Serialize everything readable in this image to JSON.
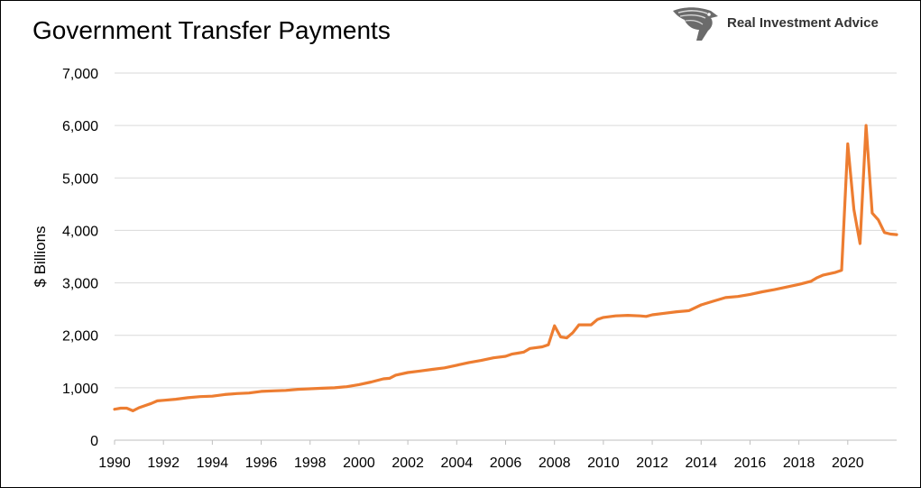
{
  "header": {
    "title": "Government Transfer Payments",
    "brand": "Real Investment Advice",
    "logo_icon": "eagle-head-icon"
  },
  "chart_data": {
    "type": "line",
    "title": "Government Transfer Payments",
    "xlabel": "",
    "ylabel": "$ Billions",
    "xlim": [
      1990,
      2022
    ],
    "ylim": [
      0,
      7000
    ],
    "yticks": [
      "0",
      "1,000",
      "2,000",
      "3,000",
      "4,000",
      "5,000",
      "6,000",
      "7,000"
    ],
    "xticks": [
      "1990",
      "1992",
      "1994",
      "1996",
      "1998",
      "2000",
      "2002",
      "2004",
      "2006",
      "2008",
      "2010",
      "2012",
      "2014",
      "2016",
      "2018",
      "2020"
    ],
    "grid": "horizontal",
    "line_color": "#ED7D31",
    "series": [
      {
        "x": [
          1990,
          1990.25,
          1990.5,
          1990.75,
          1991,
          1991.25,
          1991.5,
          1991.75,
          1992,
          1992.5,
          1993,
          1993.5,
          1994,
          1994.5,
          1995,
          1995.5,
          1996,
          1996.5,
          1997,
          1997.5,
          1998,
          1998.5,
          1999,
          1999.5,
          2000,
          2000.5,
          2001,
          2001.25,
          2001.5,
          2002,
          2002.5,
          2003,
          2003.5,
          2004,
          2004.5,
          2005,
          2005.5,
          2006,
          2006.25,
          2006.5,
          2006.75,
          2007,
          2007.5,
          2007.75,
          2008,
          2008.25,
          2008.5,
          2008.75,
          2009,
          2009.5,
          2009.75,
          2010,
          2010.5,
          2011,
          2011.5,
          2011.75,
          2012,
          2012.5,
          2013,
          2013.5,
          2014,
          2014.5,
          2015,
          2015.5,
          2016,
          2016.5,
          2017,
          2017.5,
          2018,
          2018.5,
          2018.75,
          2019,
          2019.5,
          2019.75,
          2020,
          2020.25,
          2020.5,
          2020.75,
          2021,
          2021.25,
          2021.5,
          2021.75,
          2022
        ],
        "y": [
          590,
          610,
          610,
          560,
          620,
          660,
          700,
          750,
          760,
          780,
          810,
          830,
          840,
          870,
          890,
          900,
          930,
          940,
          950,
          970,
          980,
          990,
          1000,
          1020,
          1060,
          1110,
          1170,
          1180,
          1240,
          1290,
          1320,
          1350,
          1380,
          1430,
          1480,
          1520,
          1570,
          1600,
          1640,
          1660,
          1680,
          1750,
          1780,
          1820,
          2180,
          1970,
          1950,
          2050,
          2200,
          2200,
          2300,
          2340,
          2370,
          2380,
          2370,
          2360,
          2390,
          2420,
          2450,
          2470,
          2580,
          2650,
          2720,
          2740,
          2780,
          2830,
          2870,
          2920,
          2970,
          3030,
          3100,
          3150,
          3200,
          3240,
          5650,
          4400,
          3750,
          6000,
          4330,
          4200,
          3960,
          3930,
          3920
        ]
      }
    ]
  }
}
